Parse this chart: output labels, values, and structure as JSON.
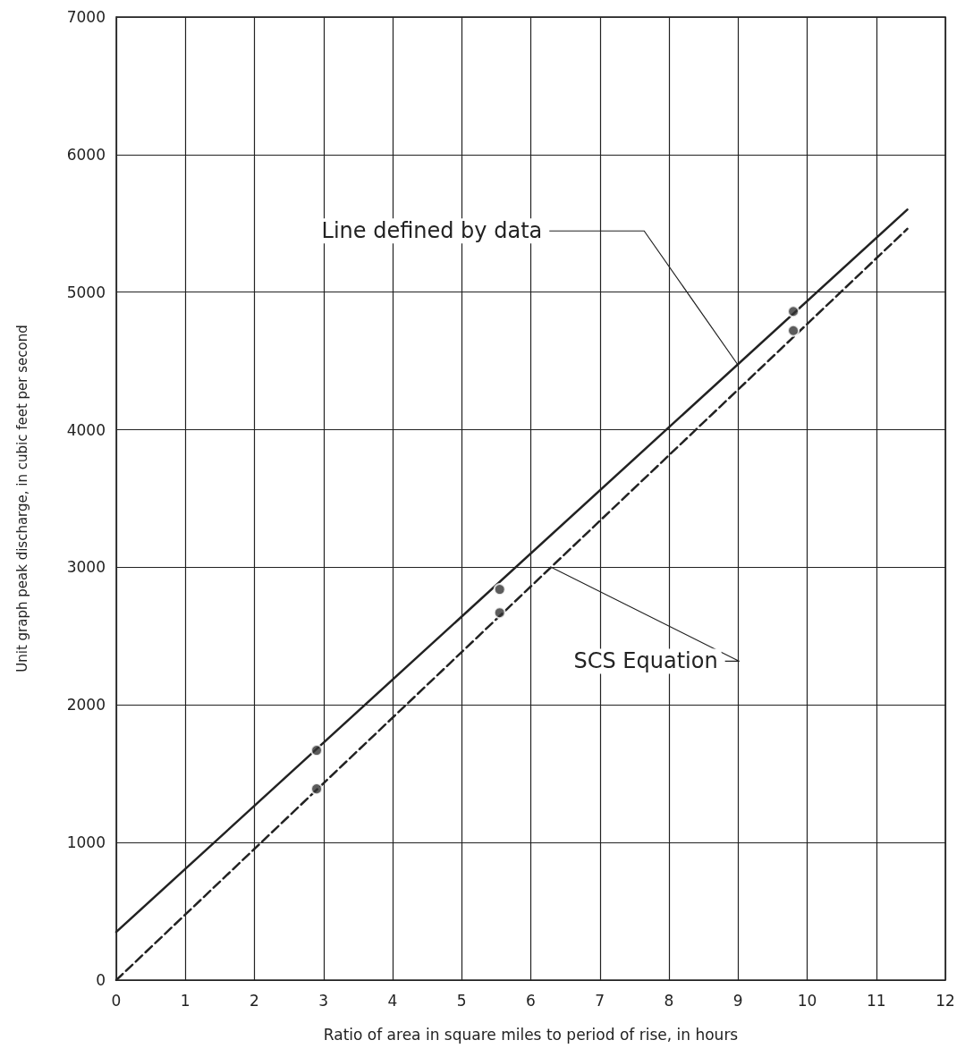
{
  "chart_data": {
    "type": "line",
    "xlabel": "Ratio of area in square miles to period of rise, in hours",
    "ylabel": "Unit graph peak discharge, in cubic feet per second",
    "xlim": [
      0,
      12
    ],
    "xticks": [
      0,
      1,
      2,
      3,
      4,
      5,
      6,
      7,
      8,
      9,
      10,
      11,
      12
    ],
    "ylim": [
      0,
      7000
    ],
    "yticks": [
      0,
      1000,
      2000,
      3000,
      4000,
      5000,
      6000,
      7000
    ],
    "grid": true,
    "series": [
      {
        "color": "#222222",
        "line_style": "solid",
        "marker": "none",
        "x": [
          0,
          11.45
        ],
        "values": [
          350,
          5600
        ]
      },
      {
        "color": "#222222",
        "line_style": "dashed",
        "marker": "none",
        "x": [
          0,
          11.45
        ],
        "values": [
          0,
          5460
        ]
      },
      {
        "type": "scatter",
        "color": "#333333",
        "marker": "circle",
        "x": [
          2.9,
          2.9,
          5.55,
          5.55,
          9.8,
          9.8
        ],
        "values": [
          1670,
          1390,
          2840,
          2670,
          4860,
          4720
        ]
      }
    ],
    "annotations": [
      {
        "text": "Line defined by data",
        "x": 9,
        "y": 4470
      },
      {
        "text": "SCS Equation",
        "x": 6.3,
        "y": 3000
      }
    ]
  }
}
